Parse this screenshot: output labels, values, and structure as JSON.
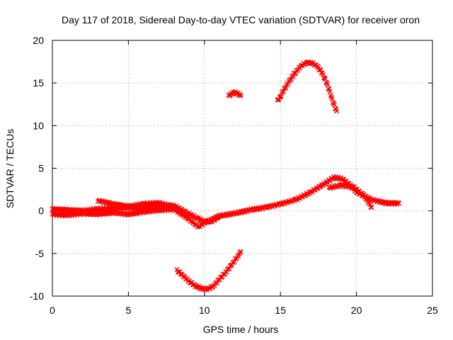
{
  "chart_data": {
    "type": "scatter",
    "title": "Day 117 of 2018, Sidereal Day-to-day VTEC variation (SDTVAR) for receiver oron",
    "xlabel": "GPS time / hours",
    "ylabel": "SDTVAR / TECUs",
    "xlim": [
      0,
      25
    ],
    "ylim": [
      -10,
      20
    ],
    "x_ticks": [
      0,
      5,
      10,
      15,
      20,
      25
    ],
    "y_ticks": [
      -10,
      -5,
      0,
      5,
      10,
      15,
      20
    ],
    "x_tick_labels": [
      "0",
      "5",
      "10",
      "15",
      "20",
      "25"
    ],
    "y_tick_labels": [
      "-10",
      "-5",
      "0",
      "5",
      "10",
      "15",
      "20"
    ],
    "grid": true,
    "marker": "x",
    "color": "#ff0000",
    "series": [
      {
        "name": "arc-main-upper",
        "points": [
          [
            0.0,
            0.2
          ],
          [
            1,
            0.1
          ],
          [
            2,
            0.0
          ],
          [
            3,
            0.2
          ],
          [
            4,
            0.3
          ],
          [
            5,
            0.4
          ],
          [
            6,
            0.3
          ],
          [
            7,
            0.6
          ],
          [
            8,
            0.6
          ],
          [
            8.8,
            -0.2
          ],
          [
            9.5,
            -0.8
          ],
          [
            10,
            -1.3
          ],
          [
            10.5,
            -1.2
          ],
          [
            11,
            -0.6
          ],
          [
            12,
            -0.3
          ],
          [
            13,
            0.1
          ],
          [
            14,
            0.4
          ],
          [
            15,
            0.8
          ],
          [
            16,
            1.3
          ],
          [
            17,
            2.2
          ],
          [
            18,
            3.3
          ],
          [
            18.5,
            3.9
          ],
          [
            19,
            3.8
          ],
          [
            19.5,
            3.2
          ],
          [
            20,
            2.2
          ],
          [
            21,
            1.3
          ],
          [
            22,
            0.9
          ],
          [
            22.8,
            0.9
          ]
        ]
      },
      {
        "name": "arc-main-lower",
        "points": [
          [
            0.0,
            -0.4
          ],
          [
            1,
            -0.5
          ],
          [
            2,
            -0.3
          ],
          [
            3,
            -0.4
          ],
          [
            4,
            -0.2
          ],
          [
            5,
            -0.4
          ],
          [
            6,
            -0.1
          ],
          [
            7,
            0.1
          ],
          [
            8,
            0.2
          ],
          [
            9,
            -1.0
          ],
          [
            9.6,
            -1.9
          ],
          [
            10,
            -1.4
          ],
          [
            11,
            -0.6
          ]
        ]
      },
      {
        "name": "arc-early-band",
        "points": [
          [
            3,
            1.2
          ],
          [
            4,
            0.8
          ],
          [
            5,
            0.5
          ],
          [
            6,
            0.8
          ],
          [
            7,
            0.9
          ],
          [
            8,
            0.5
          ]
        ]
      },
      {
        "name": "arc-late-secondary",
        "points": [
          [
            18.2,
            2.7
          ],
          [
            19,
            3.0
          ],
          [
            19.8,
            2.8
          ],
          [
            20.5,
            1.8
          ],
          [
            21,
            0.4
          ]
        ]
      },
      {
        "name": "arc-night-dip",
        "points": [
          [
            8.2,
            -7.0
          ],
          [
            8.6,
            -7.6
          ],
          [
            9.0,
            -8.3
          ],
          [
            9.4,
            -8.8
          ],
          [
            9.8,
            -9.1
          ],
          [
            10.2,
            -9.2
          ],
          [
            10.6,
            -8.8
          ],
          [
            11.0,
            -8.0
          ],
          [
            11.4,
            -7.2
          ],
          [
            11.8,
            -6.3
          ],
          [
            12.2,
            -5.3
          ],
          [
            12.4,
            -4.8
          ]
        ]
      },
      {
        "name": "arc-small-hump",
        "points": [
          [
            11.6,
            13.5
          ],
          [
            11.8,
            13.75
          ],
          [
            12.0,
            13.9
          ],
          [
            12.2,
            13.75
          ],
          [
            12.4,
            13.5
          ]
        ]
      },
      {
        "name": "arc-high-hump",
        "points": [
          [
            14.8,
            12.9
          ],
          [
            15.0,
            13.4
          ],
          [
            15.2,
            14.1
          ],
          [
            15.5,
            15.0
          ],
          [
            15.8,
            15.8
          ],
          [
            16.1,
            16.5
          ],
          [
            16.4,
            17.1
          ],
          [
            16.8,
            17.4
          ],
          [
            17.1,
            17.3
          ],
          [
            17.4,
            17.0
          ],
          [
            17.7,
            16.3
          ],
          [
            18.0,
            15.2
          ],
          [
            18.2,
            14.2
          ],
          [
            18.4,
            13.1
          ],
          [
            18.6,
            12.1
          ],
          [
            18.7,
            11.7
          ]
        ]
      }
    ]
  }
}
